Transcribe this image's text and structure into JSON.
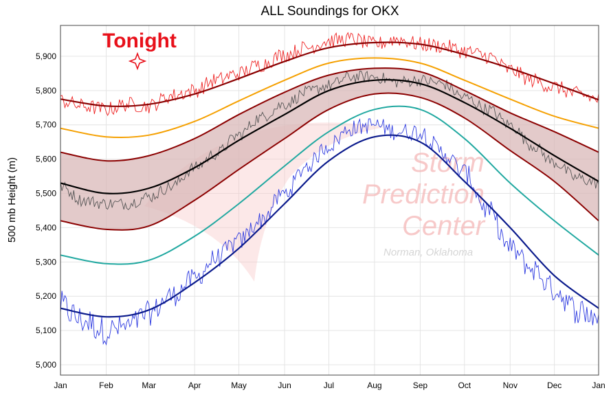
{
  "chart_data": {
    "type": "line",
    "title": "ALL Soundings for OKX",
    "ylabel": "500 mb Height (m)",
    "xlabel": "",
    "ylim": [
      4970,
      5990
    ],
    "xlim": [
      0,
      365
    ],
    "grid": true,
    "y_ticks": [
      {
        "value": 5000,
        "label": "5,000"
      },
      {
        "value": 5100,
        "label": "5,100"
      },
      {
        "value": 5200,
        "label": "5,200"
      },
      {
        "value": 5300,
        "label": "5,300"
      },
      {
        "value": 5400,
        "label": "5,400"
      },
      {
        "value": 5500,
        "label": "5,500"
      },
      {
        "value": 5600,
        "label": "5,600"
      },
      {
        "value": 5700,
        "label": "5,700"
      },
      {
        "value": 5800,
        "label": "5,800"
      },
      {
        "value": 5900,
        "label": "5,900"
      }
    ],
    "x_ticks": [
      {
        "day": 0,
        "label": "Jan"
      },
      {
        "day": 31,
        "label": "Feb"
      },
      {
        "day": 60,
        "label": "Mar"
      },
      {
        "day": 91,
        "label": "Apr"
      },
      {
        "day": 121,
        "label": "May"
      },
      {
        "day": 152,
        "label": "Jun"
      },
      {
        "day": 182,
        "label": "Jul"
      },
      {
        "day": 213,
        "label": "Aug"
      },
      {
        "day": 244,
        "label": "Sep"
      },
      {
        "day": 274,
        "label": "Oct"
      },
      {
        "day": 305,
        "label": "Nov"
      },
      {
        "day": 335,
        "label": "Dec"
      },
      {
        "day": 365,
        "label": "Jan"
      }
    ],
    "band": {
      "upper_series": "mean_plus_1sd",
      "lower_series": "mean_minus_1sd",
      "color": "#d9b8b8"
    },
    "series": [
      {
        "id": "record_max",
        "color": "#8b0000",
        "width": 2.2,
        "x": [
          0,
          31,
          60,
          91,
          121,
          152,
          182,
          213,
          244,
          274,
          305,
          335,
          365
        ],
        "values": [
          5775,
          5755,
          5760,
          5790,
          5835,
          5885,
          5925,
          5940,
          5935,
          5905,
          5865,
          5820,
          5773
        ]
      },
      {
        "id": "p99",
        "color": "#f5a000",
        "width": 2,
        "x": [
          0,
          31,
          60,
          91,
          121,
          152,
          182,
          213,
          244,
          274,
          305,
          335,
          365
        ],
        "values": [
          5690,
          5665,
          5670,
          5710,
          5770,
          5830,
          5880,
          5895,
          5880,
          5830,
          5775,
          5725,
          5690
        ]
      },
      {
        "id": "mean_plus_1sd",
        "color": "#8b0000",
        "width": 2,
        "x": [
          0,
          31,
          60,
          91,
          121,
          152,
          182,
          213,
          244,
          274,
          305,
          335,
          365
        ],
        "values": [
          5620,
          5595,
          5610,
          5660,
          5730,
          5795,
          5845,
          5865,
          5855,
          5800,
          5735,
          5680,
          5620
        ]
      },
      {
        "id": "mean",
        "color": "#000000",
        "width": 2.2,
        "x": [
          0,
          31,
          60,
          91,
          121,
          152,
          182,
          213,
          244,
          274,
          305,
          335,
          365
        ],
        "values": [
          5530,
          5500,
          5515,
          5575,
          5655,
          5730,
          5800,
          5830,
          5820,
          5765,
          5690,
          5610,
          5535
        ]
      },
      {
        "id": "mean_minus_1sd",
        "color": "#8b0000",
        "width": 2,
        "x": [
          0,
          31,
          60,
          91,
          121,
          152,
          182,
          213,
          244,
          274,
          305,
          335,
          365
        ],
        "values": [
          5420,
          5395,
          5405,
          5480,
          5570,
          5660,
          5745,
          5790,
          5780,
          5720,
          5625,
          5535,
          5420
        ]
      },
      {
        "id": "p1",
        "color": "#20a8a0",
        "width": 2,
        "x": [
          0,
          31,
          60,
          91,
          121,
          152,
          182,
          213,
          244,
          274,
          305,
          335,
          365
        ],
        "values": [
          5320,
          5295,
          5305,
          5375,
          5470,
          5580,
          5680,
          5745,
          5745,
          5660,
          5530,
          5420,
          5320
        ]
      },
      {
        "id": "record_min",
        "color": "#0a1a8c",
        "width": 2.2,
        "x": [
          0,
          31,
          60,
          91,
          121,
          152,
          182,
          213,
          244,
          274,
          305,
          335,
          365
        ],
        "values": [
          5165,
          5140,
          5160,
          5240,
          5340,
          5470,
          5595,
          5665,
          5650,
          5535,
          5400,
          5260,
          5165
        ]
      },
      {
        "id": "daily_max",
        "color": "#ee2020",
        "width": 0.9,
        "x": [
          0,
          15,
          31,
          45,
          60,
          75,
          91,
          105,
          121,
          135,
          152,
          167,
          182,
          197,
          213,
          228,
          244,
          259,
          274,
          290,
          305,
          320,
          335,
          350,
          365
        ],
        "values": [
          5770,
          5755,
          5745,
          5760,
          5755,
          5785,
          5800,
          5830,
          5850,
          5875,
          5905,
          5925,
          5945,
          5950,
          5935,
          5950,
          5935,
          5930,
          5915,
          5900,
          5860,
          5830,
          5810,
          5790,
          5775
        ]
      },
      {
        "id": "daily_mean",
        "color": "#555555",
        "width": 0.9,
        "x": [
          0,
          15,
          31,
          45,
          60,
          75,
          91,
          105,
          121,
          135,
          152,
          167,
          182,
          197,
          213,
          228,
          244,
          259,
          274,
          290,
          305,
          320,
          335,
          350,
          365
        ],
        "values": [
          5520,
          5480,
          5470,
          5470,
          5490,
          5520,
          5575,
          5615,
          5670,
          5720,
          5760,
          5795,
          5815,
          5840,
          5840,
          5825,
          5830,
          5820,
          5780,
          5745,
          5700,
          5640,
          5590,
          5545,
          5530
        ]
      },
      {
        "id": "daily_min",
        "color": "#2d3ae0",
        "width": 0.9,
        "x": [
          0,
          15,
          31,
          45,
          60,
          75,
          91,
          105,
          121,
          135,
          152,
          167,
          182,
          197,
          213,
          228,
          244,
          259,
          274,
          290,
          305,
          320,
          335,
          350,
          365
        ],
        "values": [
          5170,
          5130,
          5100,
          5110,
          5150,
          5200,
          5250,
          5310,
          5360,
          5420,
          5500,
          5580,
          5640,
          5690,
          5700,
          5680,
          5680,
          5620,
          5560,
          5450,
          5340,
          5280,
          5220,
          5160,
          5140
        ]
      }
    ],
    "annotation": {
      "text": "Tonight",
      "day": 52,
      "value": 5878,
      "color": "#e8101a"
    },
    "watermark": {
      "lines": [
        "Storm",
        "Prediction",
        "Center"
      ],
      "sub": "Norman, Oklahoma"
    }
  }
}
